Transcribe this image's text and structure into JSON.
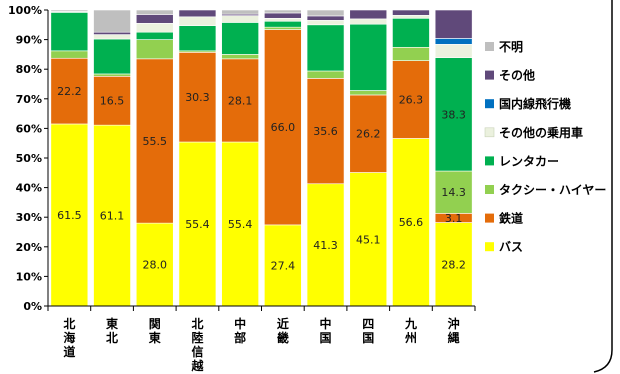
{
  "chart_data": {
    "type": "bar",
    "stacked": true,
    "percent": true,
    "categories": [
      "北海道",
      "東北",
      "関東",
      "北陸信越",
      "中部",
      "近畿",
      "中国",
      "四国",
      "九州",
      "沖縄"
    ],
    "ylim": [
      0,
      100
    ],
    "y_ticks": [
      "0%",
      "10%",
      "20%",
      "30%",
      "40%",
      "50%",
      "60%",
      "70%",
      "80%",
      "90%",
      "100%"
    ],
    "grid": false,
    "legend_position": "right",
    "series": [
      {
        "name": "バス",
        "color": "#FFFF00",
        "values": [
          61.5,
          61.1,
          28.0,
          55.4,
          55.4,
          27.4,
          41.3,
          45.1,
          56.6,
          28.2
        ],
        "labels": [
          "61.5",
          "61.1",
          "28.0",
          "55.4",
          "55.4",
          "27.4",
          "41.3",
          "45.1",
          "56.6",
          "28.2"
        ]
      },
      {
        "name": "鉄道",
        "color": "#E46C0A",
        "values": [
          22.2,
          16.5,
          55.5,
          30.3,
          28.1,
          66.0,
          35.6,
          26.2,
          26.3,
          3.1
        ],
        "labels": [
          "22.2",
          "16.5",
          "55.5",
          "30.3",
          "28.1",
          "66.0",
          "35.6",
          "26.2",
          "26.3",
          "3.1"
        ]
      },
      {
        "name": "タクシー・ハイヤー",
        "color": "#92D050",
        "values": [
          2.5,
          0.8,
          6.5,
          0.5,
          1.5,
          0.8,
          2.5,
          1.5,
          4.5,
          14.3
        ],
        "labels": [
          "",
          "",
          "",
          "",
          "",
          "",
          "",
          "",
          "",
          "14.3"
        ]
      },
      {
        "name": "レンタカー",
        "color": "#00B050",
        "values": [
          13.0,
          11.8,
          2.5,
          8.5,
          10.8,
          2.0,
          15.6,
          22.4,
          9.8,
          38.3
        ],
        "labels": [
          "",
          "",
          "",
          "",
          "",
          "",
          "",
          "",
          "",
          "38.3"
        ]
      },
      {
        "name": "その他の乗用車",
        "color": "#EBF1DE",
        "values": [
          0.3,
          1.5,
          3.0,
          3.0,
          2.3,
          1.0,
          1.5,
          1.8,
          1.0,
          4.5
        ],
        "labels": [
          "",
          "",
          "",
          "",
          "",
          "",
          "",
          "",
          "",
          ""
        ]
      },
      {
        "name": "国内線飛行機",
        "color": "#0070C0",
        "values": [
          0,
          0,
          0,
          0,
          0,
          0,
          0,
          0,
          0,
          2.0
        ],
        "labels": [
          "",
          "",
          "",
          "",
          "",
          "",
          "",
          "",
          "",
          ""
        ]
      },
      {
        "name": "その他",
        "color": "#60497A",
        "values": [
          0,
          0.8,
          3.0,
          2.3,
          0.5,
          1.8,
          1.5,
          3.0,
          1.8,
          9.6
        ],
        "labels": [
          "",
          "",
          "",
          "",
          "",
          "",
          "",
          "",
          "",
          ""
        ]
      },
      {
        "name": "不明",
        "color": "#BFBFBF",
        "values": [
          0.5,
          7.5,
          1.5,
          0,
          1.4,
          1.0,
          2.0,
          0,
          0,
          0
        ],
        "labels": [
          "",
          "",
          "",
          "",
          "",
          "",
          "",
          "",
          "",
          ""
        ]
      }
    ],
    "legend_order": [
      "不明",
      "その他",
      "国内線飛行機",
      "その他の乗用車",
      "レンタカー",
      "タクシー・ハイヤー",
      "鉄道",
      "バス"
    ]
  }
}
